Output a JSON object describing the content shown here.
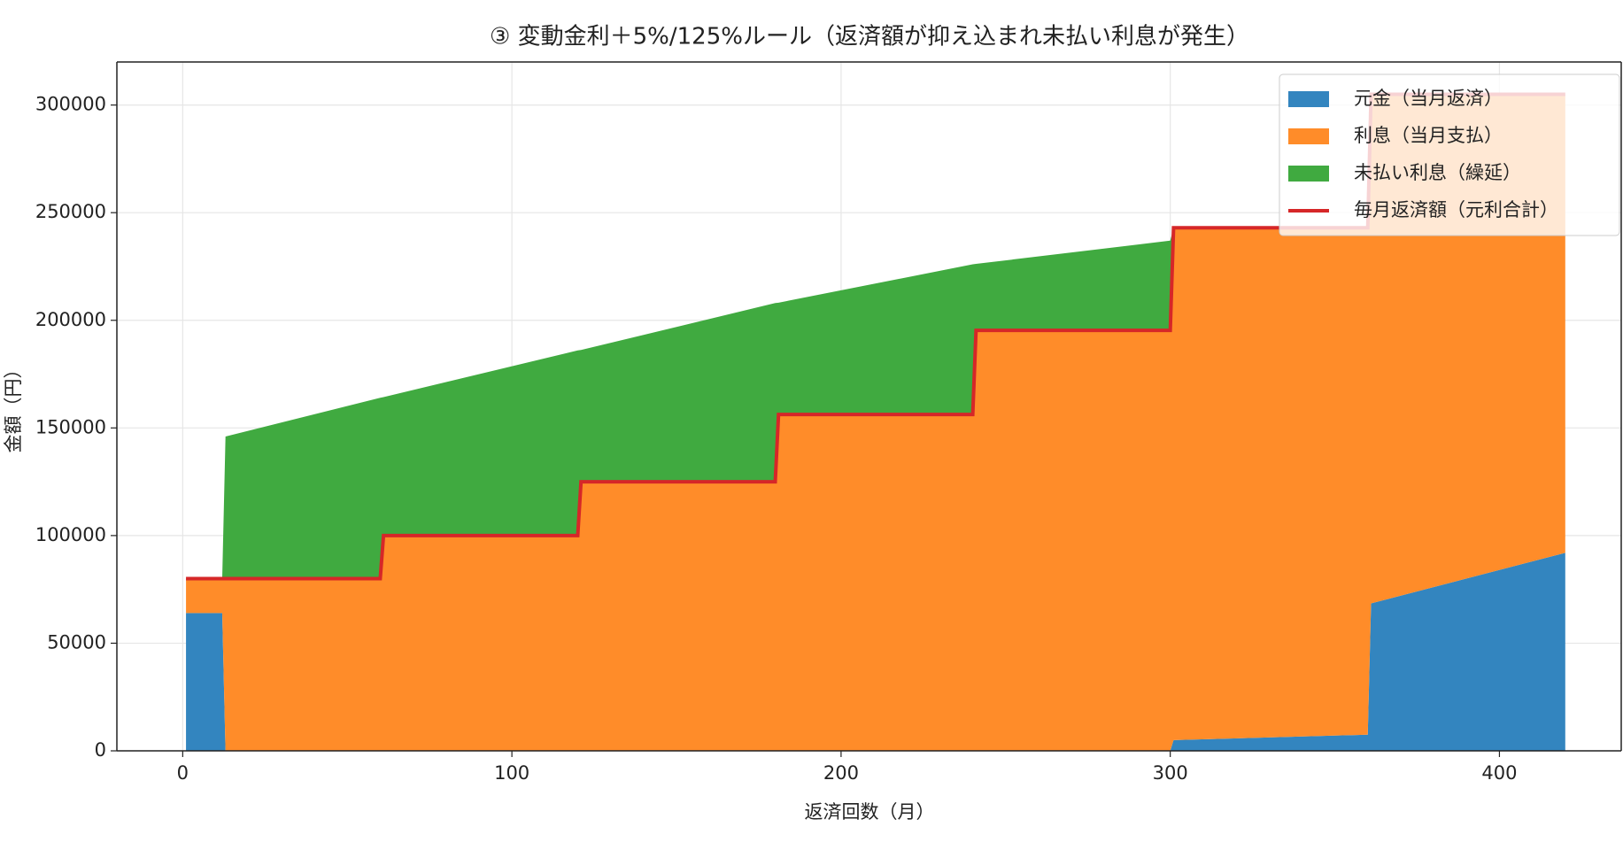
{
  "chart_data": {
    "type": "stacked_area",
    "title": "③ 変動金利＋5%/125%ルール（返済額が抑え込まれ未払い利息が発生）",
    "xlabel": "返済回数（月）",
    "ylabel": "金額（円）",
    "x": [
      1,
      12,
      13,
      60,
      61,
      120,
      121,
      180,
      181,
      240,
      241,
      300,
      301,
      360,
      361,
      420
    ],
    "series": [
      {
        "name": "元金（当月返済）",
        "color": "#3385bf",
        "values": [
          64000,
          64000,
          0,
          0,
          0,
          0,
          0,
          0,
          0,
          0,
          0,
          0,
          5000,
          7500,
          68500,
          92000
        ]
      },
      {
        "name": "利息（当月支払）",
        "color": "#ff8c29",
        "values": [
          16000,
          16000,
          80000,
          80000,
          100000,
          100000,
          125000,
          125000,
          156250,
          156250,
          195300,
          195300,
          238000,
          235500,
          236500,
          213000
        ]
      },
      {
        "name": "未払い利息（繰延）",
        "color": "#40aa40",
        "values": [
          0,
          0,
          66000,
          84000,
          64300,
          86000,
          61200,
          83000,
          51950,
          69750,
          30900,
          41700,
          0,
          0,
          0,
          0
        ]
      },
      {
        "name": "毎月返済額（元利合計）",
        "color": "#d62728",
        "kind": "line",
        "values": [
          80000,
          80000,
          80000,
          80000,
          100000,
          100000,
          125000,
          125000,
          156250,
          156250,
          195300,
          195300,
          243000,
          243000,
          305000,
          305000
        ]
      }
    ],
    "xlim": [
      -20,
      437
    ],
    "ylim": [
      0,
      320000
    ],
    "xticks": [
      0,
      100,
      200,
      300,
      400
    ],
    "yticks": [
      0,
      50000,
      100000,
      150000,
      200000,
      250000,
      300000
    ],
    "grid": true,
    "legend": "upper right"
  }
}
